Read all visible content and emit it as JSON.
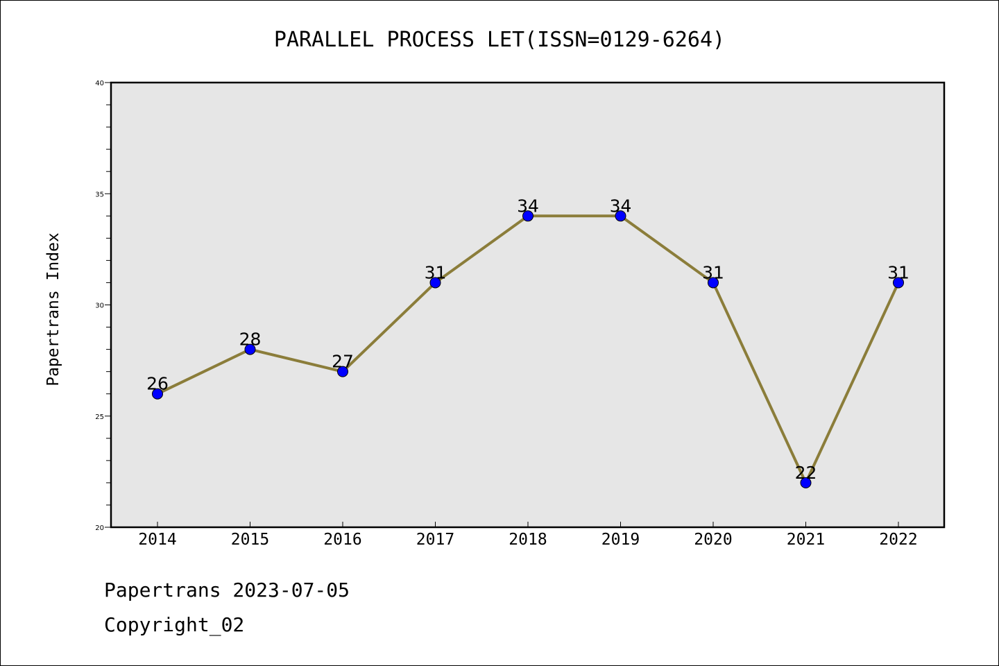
{
  "chart_data": {
    "type": "line",
    "title": "PARALLEL PROCESS LET(ISSN=0129-6264)",
    "xlabel": "",
    "ylabel": "Papertrans Index",
    "categories": [
      "2014",
      "2015",
      "2016",
      "2017",
      "2018",
      "2019",
      "2020",
      "2021",
      "2022"
    ],
    "values": [
      26,
      28,
      27,
      31,
      34,
      34,
      31,
      22,
      31
    ],
    "data_labels": [
      "26",
      "28",
      "27",
      "31",
      "34",
      "34",
      "31",
      "22",
      "31"
    ],
    "ylim": [
      20,
      40
    ],
    "yticks": [
      20,
      25,
      30,
      35,
      40
    ],
    "grid": false,
    "colors": {
      "line": "#8b7d3a",
      "marker": "#0000ff",
      "plot_background": "#e6e6e6"
    }
  },
  "footer": {
    "line1": "Papertrans 2023-07-05",
    "line2": "Copyright_02"
  }
}
